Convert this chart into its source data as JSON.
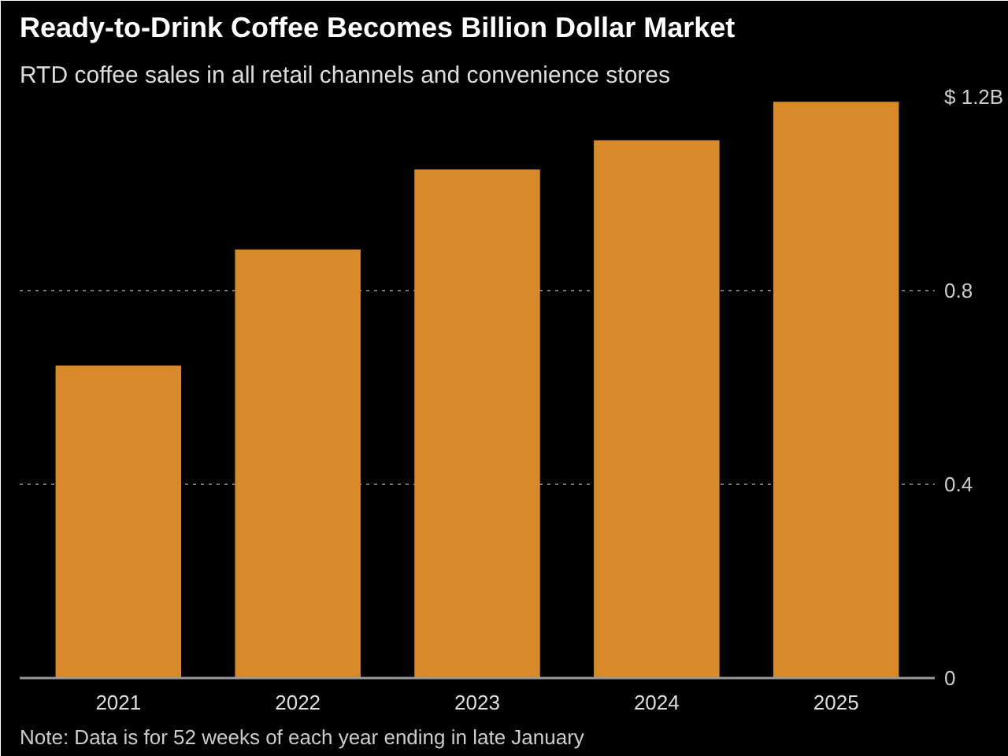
{
  "chart_data": {
    "type": "bar",
    "title": "Ready-to-Drink Coffee Becomes Billion Dollar Market",
    "subtitle": "RTD coffee sales in all retail channels and convenience stores",
    "categories": [
      "2021",
      "2022",
      "2023",
      "2024",
      "2025"
    ],
    "values": [
      0.645,
      0.885,
      1.05,
      1.11,
      1.19
    ],
    "color": "#d98a28",
    "ylim": [
      0,
      1.2
    ],
    "yticks": [
      0,
      0.4,
      0.8,
      {
        "value": 1.2,
        "label": "$ 1.2B"
      }
    ],
    "grid": "y",
    "annotations": [
      "Note: Data is for 52 weeks of each year ending in late January"
    ]
  }
}
